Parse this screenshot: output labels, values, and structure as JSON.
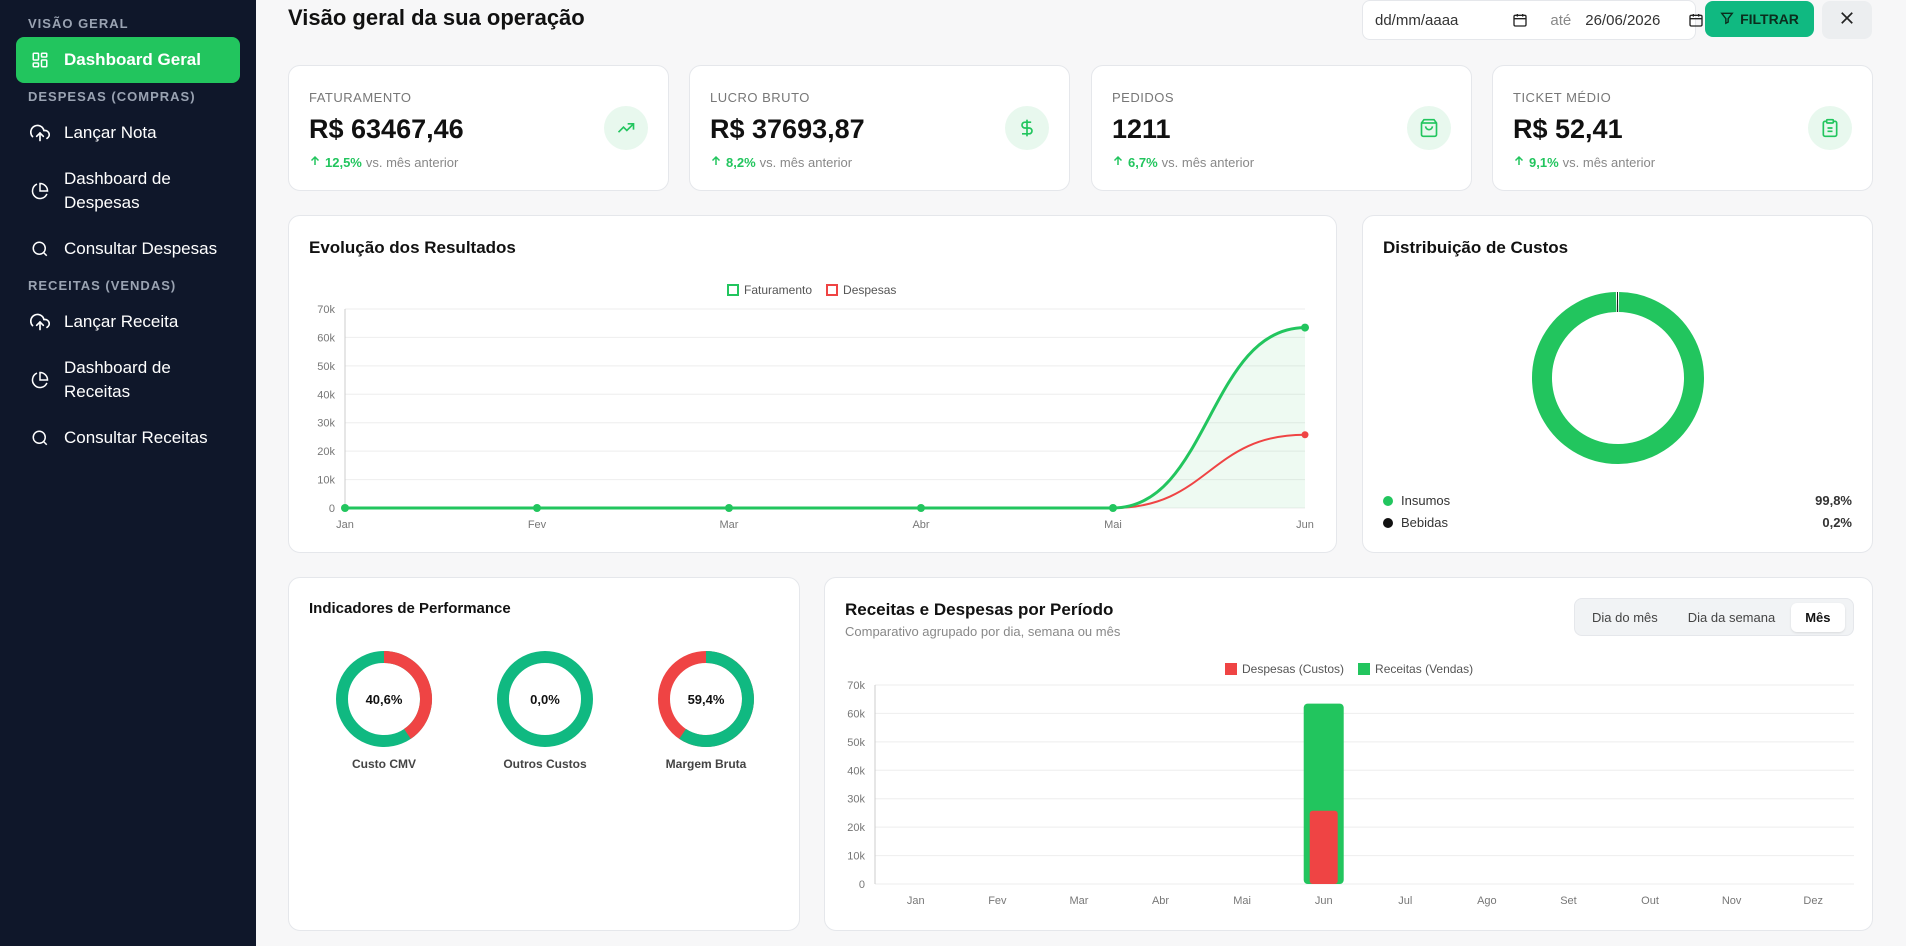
{
  "sidebar": {
    "sections": [
      {
        "title": "VISÃO GERAL"
      },
      {
        "title": "DESPESAS (COMPRAS)"
      },
      {
        "title": "RECEITAS (VENDAS)"
      }
    ],
    "items": [
      {
        "label": "Dashboard Geral",
        "icon": "layout-grid-icon"
      },
      {
        "label": "Lançar Nota",
        "icon": "cloud-upload-icon"
      },
      {
        "label": "Dashboard de Despesas",
        "icon": "pie-chart-icon"
      },
      {
        "label": "Consultar Despesas",
        "icon": "search-icon"
      },
      {
        "label": "Lançar Receita",
        "icon": "cloud-upload-icon"
      },
      {
        "label": "Dashboard de Receitas",
        "icon": "pie-chart-icon"
      },
      {
        "label": "Consultar Receitas",
        "icon": "search-icon"
      }
    ]
  },
  "header": {
    "title": "Visão geral da sua operação",
    "date_from_placeholder": "dd/mm/aaaa",
    "date_separator": "até",
    "date_to_value": "26/06/2026",
    "filter_label": "FILTRAR"
  },
  "kpis": [
    {
      "label": "FATURAMENTO",
      "value": "R$ 63467,46",
      "delta": "12,5%",
      "delta_text": "vs. mês anterior",
      "icon": "trending-up-icon"
    },
    {
      "label": "LUCRO BRUTO",
      "value": "R$ 37693,87",
      "delta": "8,2%",
      "delta_text": "vs. mês anterior",
      "icon": "dollar-icon"
    },
    {
      "label": "PEDIDOS",
      "value": "1211",
      "delta": "6,7%",
      "delta_text": "vs. mês anterior",
      "icon": "shopping-bag-icon"
    },
    {
      "label": "TICKET MÉDIO",
      "value": "R$ 52,41",
      "delta": "9,1%",
      "delta_text": "vs. mês anterior",
      "icon": "clipboard-icon"
    }
  ],
  "evolution": {
    "title": "Evolução dos Resultados"
  },
  "distribution": {
    "title": "Distribuição de Custos",
    "items": [
      {
        "name": "Insumos",
        "pct": "99,8%",
        "color": "#22c55e"
      },
      {
        "name": "Bebidas",
        "pct": "0,2%",
        "color": "#111111"
      }
    ]
  },
  "performance": {
    "title": "Indicadores de Performance",
    "items": [
      {
        "label": "Custo CMV",
        "value": "40,6%",
        "pct": 40.6,
        "fill_color": "#ef4444",
        "rest_color": "#10b981"
      },
      {
        "label": "Outros Custos",
        "value": "0,0%",
        "pct": 0.0,
        "fill_color": "#ef4444",
        "rest_color": "#10b981"
      },
      {
        "label": "Margem Bruta",
        "value": "59,4%",
        "pct": 59.4,
        "fill_color": "#10b981",
        "rest_color": "#ef4444"
      }
    ]
  },
  "period": {
    "title": "Receitas e Despesas por Período",
    "subtitle": "Comparativo agrupado por dia, semana ou mês",
    "options": [
      "Dia do mês",
      "Dia da semana",
      "Mês"
    ],
    "active_option": "Mês"
  },
  "chart_data": [
    {
      "type": "line",
      "title": "Evolução dos Resultados",
      "categories": [
        "Jan",
        "Fev",
        "Mar",
        "Abr",
        "Mai",
        "Jun"
      ],
      "series": [
        {
          "name": "Faturamento",
          "values": [
            0,
            0,
            0,
            0,
            0,
            63467
          ],
          "color": "#22c55e"
        },
        {
          "name": "Despesas",
          "values": [
            0,
            0,
            0,
            0,
            0,
            25774
          ],
          "color": "#ef4444"
        }
      ],
      "yticks": [
        "0",
        "10k",
        "20k",
        "30k",
        "40k",
        "50k",
        "60k",
        "70k"
      ],
      "ylim": [
        0,
        70000
      ],
      "legend": "top-center",
      "grid": true
    },
    {
      "type": "pie",
      "title": "Distribuição de Custos",
      "categories": [
        "Insumos",
        "Bebidas"
      ],
      "values": [
        99.8,
        0.2
      ],
      "colors": [
        "#22c55e",
        "#111111"
      ]
    },
    {
      "type": "bar",
      "title": "Receitas e Despesas por Período",
      "categories": [
        "Jan",
        "Fev",
        "Mar",
        "Abr",
        "Mai",
        "Jun",
        "Jul",
        "Ago",
        "Set",
        "Out",
        "Nov",
        "Dez"
      ],
      "series": [
        {
          "name": "Despesas (Custos)",
          "values": [
            0,
            0,
            0,
            0,
            0,
            25774,
            0,
            0,
            0,
            0,
            0,
            0
          ],
          "color": "#ef4444"
        },
        {
          "name": "Receitas (Vendas)",
          "values": [
            0,
            0,
            0,
            0,
            0,
            63467,
            0,
            0,
            0,
            0,
            0,
            0
          ],
          "color": "#22c55e"
        }
      ],
      "yticks": [
        "0",
        "10k",
        "20k",
        "30k",
        "40k",
        "50k",
        "60k",
        "70k"
      ],
      "ylim": [
        0,
        70000
      ],
      "legend": "top-center",
      "grid": true
    }
  ]
}
